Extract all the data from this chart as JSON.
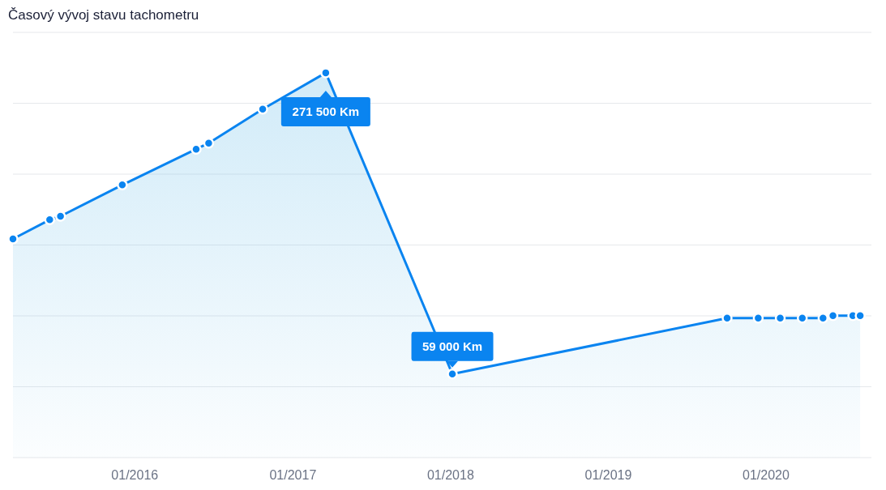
{
  "chart_data": {
    "type": "area",
    "title": "Časový vývoj stavu tachometru",
    "x": [
      "2015-03-25",
      "2015-06-18",
      "2015-07-13",
      "2015-12-03",
      "2016-05-22",
      "2016-06-20",
      "2016-10-23",
      "2017-03-18",
      "2018-01-05",
      "2019-10-03",
      "2019-12-14",
      "2020-02-03",
      "2020-03-25",
      "2020-05-12",
      "2020-06-04",
      "2020-07-20",
      "2020-08-06"
    ],
    "series": [
      {
        "color": "#0a84f0",
        "values": [
          154300,
          167800,
          170300,
          192400,
          217600,
          221900,
          245900,
          271500,
          59000,
          98400,
          98400,
          98400,
          98400,
          98400,
          100200,
          100200,
          100200
        ],
        "value_labels": [
          null,
          null,
          null,
          null,
          null,
          null,
          null,
          "271 500 Km",
          "59 000 Km",
          null,
          null,
          null,
          null,
          null,
          null,
          null,
          null
        ]
      }
    ],
    "xlim": [
      "2015-03-25",
      "2020-09-01"
    ],
    "xticks": [
      {
        "value": "2016-01-01",
        "label": "01/2016"
      },
      {
        "value": "2017-01-01",
        "label": "01/2017"
      },
      {
        "value": "2018-01-01",
        "label": "01/2018"
      },
      {
        "value": "2019-01-01",
        "label": "01/2019"
      },
      {
        "value": "2020-01-01",
        "label": "01/2020"
      }
    ],
    "ylim": [
      0,
      300000
    ],
    "yticks": [
      {
        "value": 0,
        "label": null
      },
      {
        "value": 50000,
        "label": null
      },
      {
        "value": 100000,
        "label": null
      },
      {
        "value": 150000,
        "label": null
      },
      {
        "value": 200000,
        "label": null
      },
      {
        "value": 250000,
        "label": null
      },
      {
        "value": 300000,
        "label": null
      }
    ],
    "grid": "y",
    "tick_labels": "x",
    "marker": "circle",
    "line_style": "solid"
  }
}
